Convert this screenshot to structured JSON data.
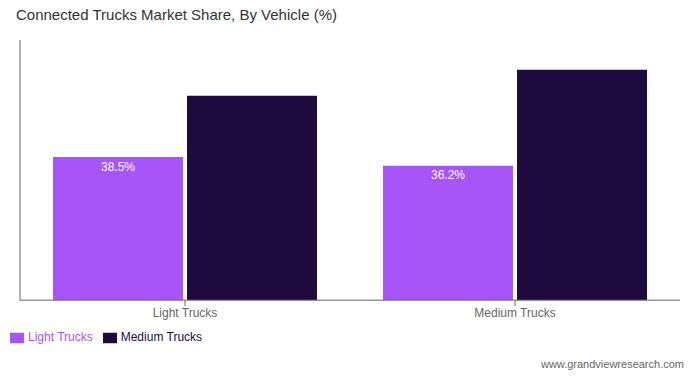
{
  "chart_data": {
    "type": "bar",
    "title": "Connected Trucks Market Share, By Vehicle (%)",
    "categories": [
      "Light Trucks",
      "Medium Trucks"
    ],
    "series": [
      {
        "name": "Light Trucks",
        "color": "#a855f7",
        "values": [
          38.5,
          36.2
        ],
        "value_labels": [
          "38.5%",
          "36.2%"
        ]
      },
      {
        "name": "Medium Trucks",
        "color": "#1e0a3c",
        "values": [
          55.0,
          62.0
        ]
      }
    ],
    "ylim": [
      0,
      70
    ],
    "tick_labels": "x",
    "grid": false,
    "legend": "lower left",
    "annotations": [
      "www.grandviewresearch.com"
    ]
  }
}
